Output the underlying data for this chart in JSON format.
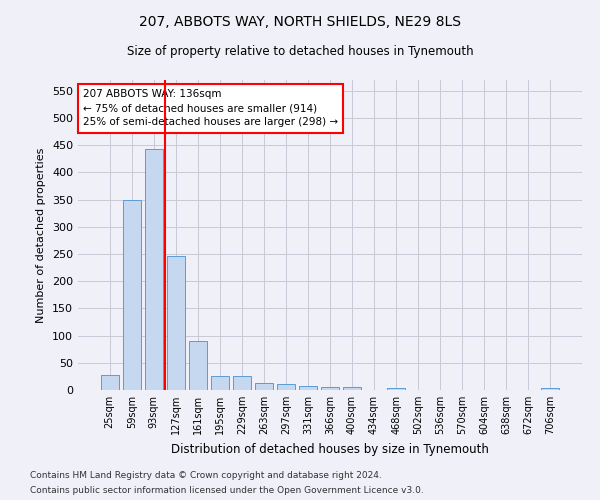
{
  "title": "207, ABBOTS WAY, NORTH SHIELDS, NE29 8LS",
  "subtitle": "Size of property relative to detached houses in Tynemouth",
  "xlabel": "Distribution of detached houses by size in Tynemouth",
  "ylabel": "Number of detached properties",
  "categories": [
    "25sqm",
    "59sqm",
    "93sqm",
    "127sqm",
    "161sqm",
    "195sqm",
    "229sqm",
    "263sqm",
    "297sqm",
    "331sqm",
    "366sqm",
    "400sqm",
    "434sqm",
    "468sqm",
    "502sqm",
    "536sqm",
    "570sqm",
    "604sqm",
    "638sqm",
    "672sqm",
    "706sqm"
  ],
  "values": [
    27,
    349,
    443,
    247,
    91,
    25,
    25,
    13,
    11,
    7,
    5,
    5,
    0,
    4,
    0,
    0,
    0,
    0,
    0,
    0,
    4
  ],
  "bar_color": "#c5d8f0",
  "bar_edge_color": "#5b9bd5",
  "grid_color": "#c8c8d8",
  "vline_x_index": 3,
  "vline_color": "red",
  "annotation_text": "207 ABBOTS WAY: 136sqm\n← 75% of detached houses are smaller (914)\n25% of semi-detached houses are larger (298) →",
  "annotation_box_color": "white",
  "annotation_box_edge": "red",
  "ylim": [
    0,
    570
  ],
  "yticks": [
    0,
    50,
    100,
    150,
    200,
    250,
    300,
    350,
    400,
    450,
    500,
    550
  ],
  "footer1": "Contains HM Land Registry data © Crown copyright and database right 2024.",
  "footer2": "Contains public sector information licensed under the Open Government Licence v3.0.",
  "bg_color": "#f0f0f8"
}
